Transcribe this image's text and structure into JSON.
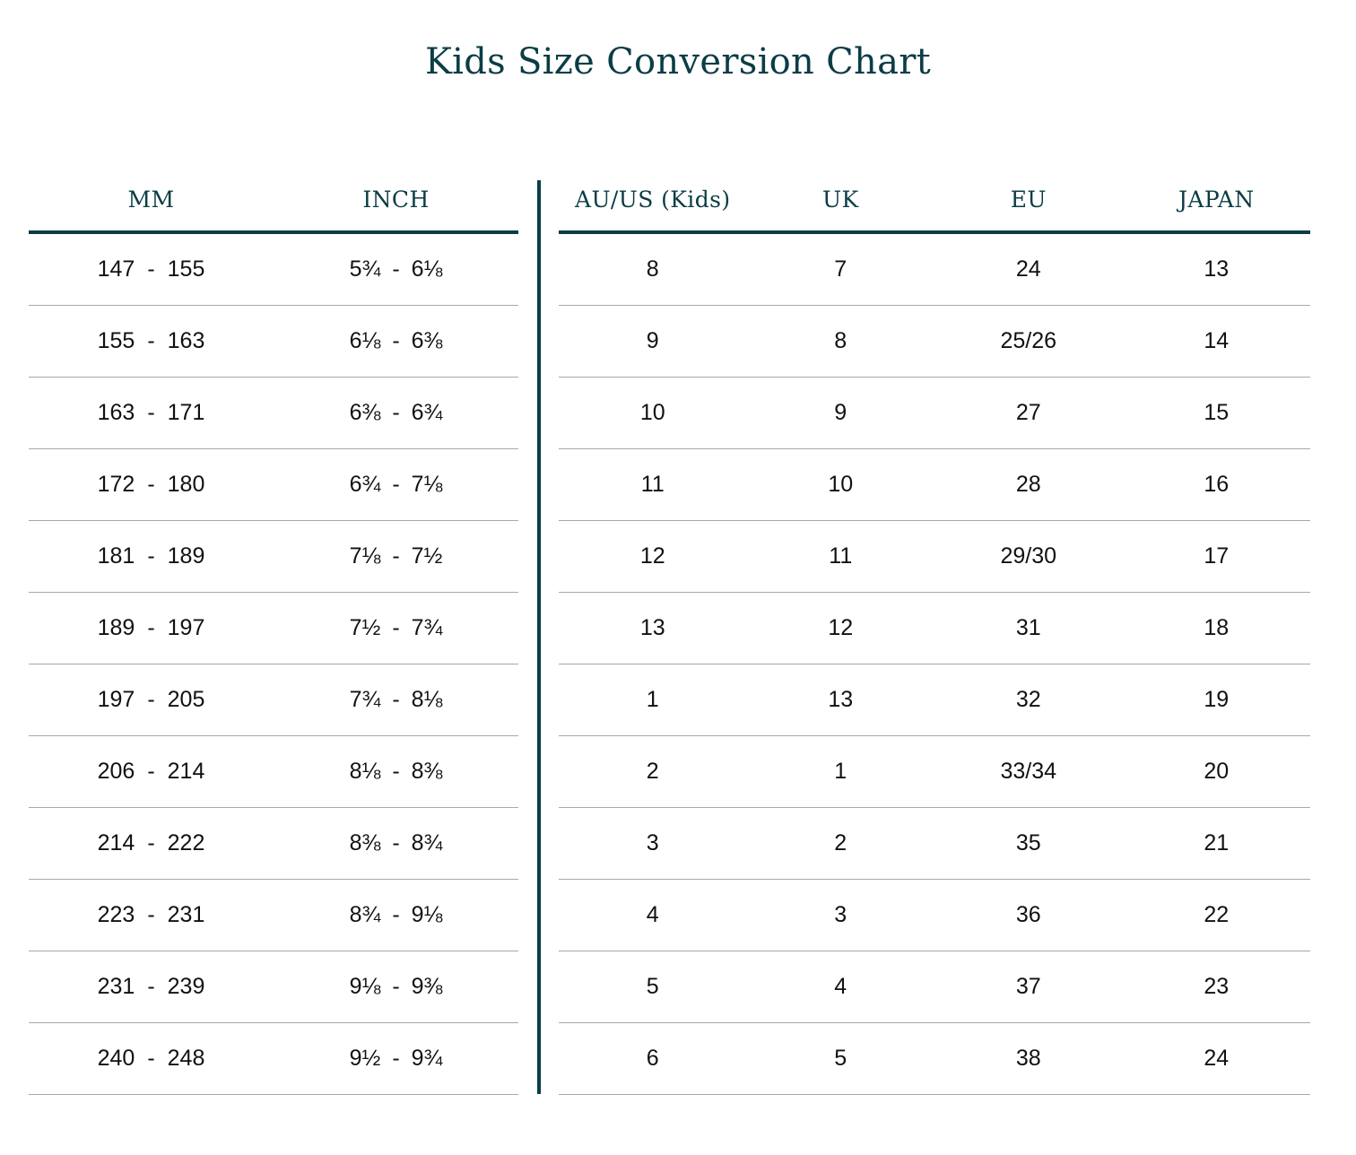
{
  "title": "Kids Size Conversion Chart",
  "colors": {
    "accent": "#0b3d45",
    "row_divider": "#a8a8a8",
    "text": "#111111"
  },
  "left_table": {
    "headers": [
      "MM",
      "INCH"
    ],
    "rows": [
      {
        "mm_from": "147",
        "mm_to": "155",
        "inch_from": "5¾",
        "inch_to": "6⅛"
      },
      {
        "mm_from": "155",
        "mm_to": "163",
        "inch_from": "6⅛",
        "inch_to": "6⅜"
      },
      {
        "mm_from": "163",
        "mm_to": "171",
        "inch_from": "6⅜",
        "inch_to": "6¾"
      },
      {
        "mm_from": "172",
        "mm_to": "180",
        "inch_from": "6¾",
        "inch_to": "7⅛"
      },
      {
        "mm_from": "181",
        "mm_to": "189",
        "inch_from": "7⅛",
        "inch_to": "7½"
      },
      {
        "mm_from": "189",
        "mm_to": "197",
        "inch_from": "7½",
        "inch_to": "7¾"
      },
      {
        "mm_from": "197",
        "mm_to": "205",
        "inch_from": "7¾",
        "inch_to": "8⅛"
      },
      {
        "mm_from": "206",
        "mm_to": "214",
        "inch_from": "8⅛",
        "inch_to": "8⅜"
      },
      {
        "mm_from": "214",
        "mm_to": "222",
        "inch_from": "8⅜",
        "inch_to": "8¾"
      },
      {
        "mm_from": "223",
        "mm_to": "231",
        "inch_from": "8¾",
        "inch_to": "9⅛"
      },
      {
        "mm_from": "231",
        "mm_to": "239",
        "inch_from": "9⅛",
        "inch_to": "9⅜"
      },
      {
        "mm_from": "240",
        "mm_to": "248",
        "inch_from": "9½",
        "inch_to": "9¾"
      }
    ]
  },
  "right_table": {
    "headers": [
      "AU/US (Kids)",
      "UK",
      "EU",
      "JAPAN"
    ],
    "rows": [
      [
        "8",
        "7",
        "24",
        "13"
      ],
      [
        "9",
        "8",
        "25/26",
        "14"
      ],
      [
        "10",
        "9",
        "27",
        "15"
      ],
      [
        "11",
        "10",
        "28",
        "16"
      ],
      [
        "12",
        "11",
        "29/30",
        "17"
      ],
      [
        "13",
        "12",
        "31",
        "18"
      ],
      [
        "1",
        "13",
        "32",
        "19"
      ],
      [
        "2",
        "1",
        "33/34",
        "20"
      ],
      [
        "3",
        "2",
        "35",
        "21"
      ],
      [
        "4",
        "3",
        "36",
        "22"
      ],
      [
        "5",
        "4",
        "37",
        "23"
      ],
      [
        "6",
        "5",
        "38",
        "24"
      ]
    ]
  },
  "range_separator": "-"
}
